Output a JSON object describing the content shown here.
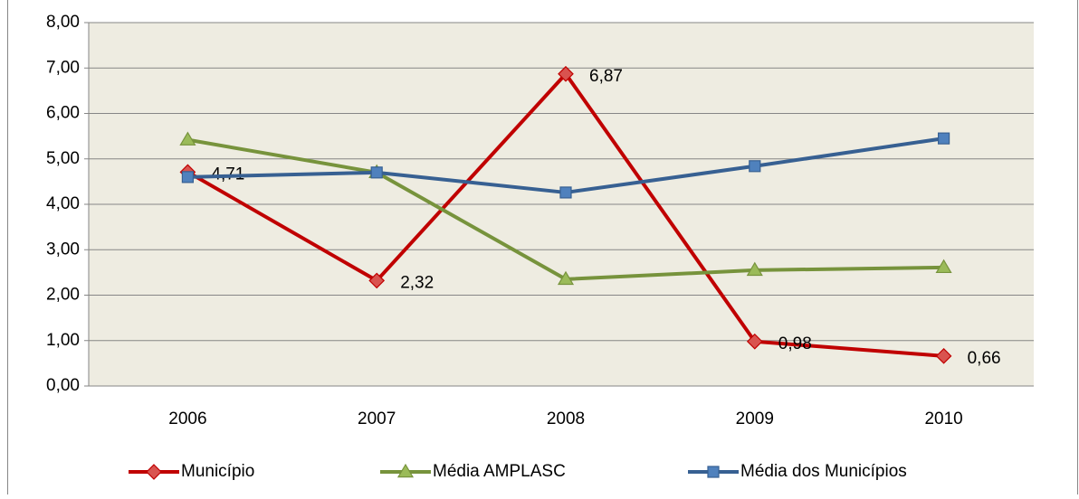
{
  "chart_data": {
    "type": "line",
    "categories": [
      "2006",
      "2007",
      "2008",
      "2009",
      "2010"
    ],
    "series": [
      {
        "name": "Município",
        "color": "#c00000",
        "marker": "diamond",
        "marker_color": "#d9534f",
        "values": [
          4.71,
          2.32,
          6.87,
          0.98,
          0.66
        ],
        "value_labels": [
          "4,71",
          "2,32",
          "6,87",
          "0,98",
          "0,66"
        ]
      },
      {
        "name": "Média AMPLASC",
        "color": "#77933c",
        "marker": "triangle",
        "marker_color": "#9bbb59",
        "values": [
          5.42,
          4.7,
          2.35,
          2.55,
          2.61
        ]
      },
      {
        "name": "Média dos Municípios",
        "color": "#376092",
        "marker": "square",
        "marker_color": "#4f81bd",
        "values": [
          4.6,
          4.7,
          4.26,
          4.84,
          5.45
        ]
      }
    ],
    "ylim": [
      0,
      8
    ],
    "yticks": [
      {
        "value": 0,
        "label": "0,00"
      },
      {
        "value": 1,
        "label": "1,00"
      },
      {
        "value": 2,
        "label": "2,00"
      },
      {
        "value": 3,
        "label": "3,00"
      },
      {
        "value": 4,
        "label": "4,00"
      },
      {
        "value": 5,
        "label": "5,00"
      },
      {
        "value": 6,
        "label": "6,00"
      },
      {
        "value": 7,
        "label": "7,00"
      },
      {
        "value": 8,
        "label": "8,00"
      }
    ],
    "grid": true,
    "legend": "bottom",
    "plot_background": "#eeece1"
  }
}
